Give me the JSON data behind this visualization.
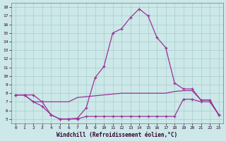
{
  "background_color": "#cce8e8",
  "grid_color": "#aacccc",
  "line_color": "#993399",
  "xlabel": "Windchill (Refroidissement éolien,°C)",
  "xlim": [
    -0.5,
    23.5
  ],
  "ylim": [
    4.5,
    18.5
  ],
  "yticks": [
    5,
    6,
    7,
    8,
    9,
    10,
    11,
    12,
    13,
    14,
    15,
    16,
    17,
    18
  ],
  "xticks": [
    0,
    1,
    2,
    3,
    4,
    5,
    6,
    7,
    8,
    9,
    10,
    11,
    12,
    13,
    14,
    15,
    16,
    17,
    18,
    19,
    20,
    21,
    22,
    23
  ],
  "line1_x": [
    0,
    1,
    2,
    3,
    4,
    5,
    6,
    7,
    8,
    9,
    10,
    11,
    12,
    13,
    14,
    15,
    16,
    17,
    18,
    19,
    20,
    21,
    22,
    23
  ],
  "line1_y": [
    7.8,
    7.8,
    7.8,
    7.0,
    5.5,
    5.0,
    5.0,
    5.1,
    6.3,
    9.8,
    11.1,
    15.0,
    15.5,
    16.8,
    17.8,
    17.0,
    14.5,
    13.3,
    9.2,
    8.5,
    8.5,
    7.2,
    7.2,
    5.5
  ],
  "line2_x": [
    0,
    1,
    2,
    3,
    4,
    5,
    6,
    7,
    8,
    9,
    10,
    11,
    12,
    13,
    14,
    15,
    16,
    17,
    18,
    19,
    20,
    21,
    22,
    23
  ],
  "line2_y": [
    7.8,
    7.8,
    7.0,
    7.0,
    7.0,
    7.0,
    7.0,
    7.5,
    7.6,
    7.7,
    7.8,
    7.9,
    8.0,
    8.0,
    8.0,
    8.0,
    8.0,
    8.0,
    8.2,
    8.3,
    8.3,
    7.2,
    7.2,
    5.5
  ],
  "line3_x": [
    0,
    1,
    2,
    3,
    4,
    5,
    6,
    7,
    8,
    9,
    10,
    11,
    12,
    13,
    14,
    15,
    16,
    17,
    18,
    19,
    20,
    21,
    22,
    23
  ],
  "line3_y": [
    7.8,
    7.8,
    7.0,
    6.5,
    5.5,
    5.0,
    5.0,
    5.0,
    5.3,
    5.3,
    5.3,
    5.3,
    5.3,
    5.3,
    5.3,
    5.3,
    5.3,
    5.3,
    5.3,
    7.3,
    7.3,
    7.0,
    7.0,
    5.5
  ]
}
